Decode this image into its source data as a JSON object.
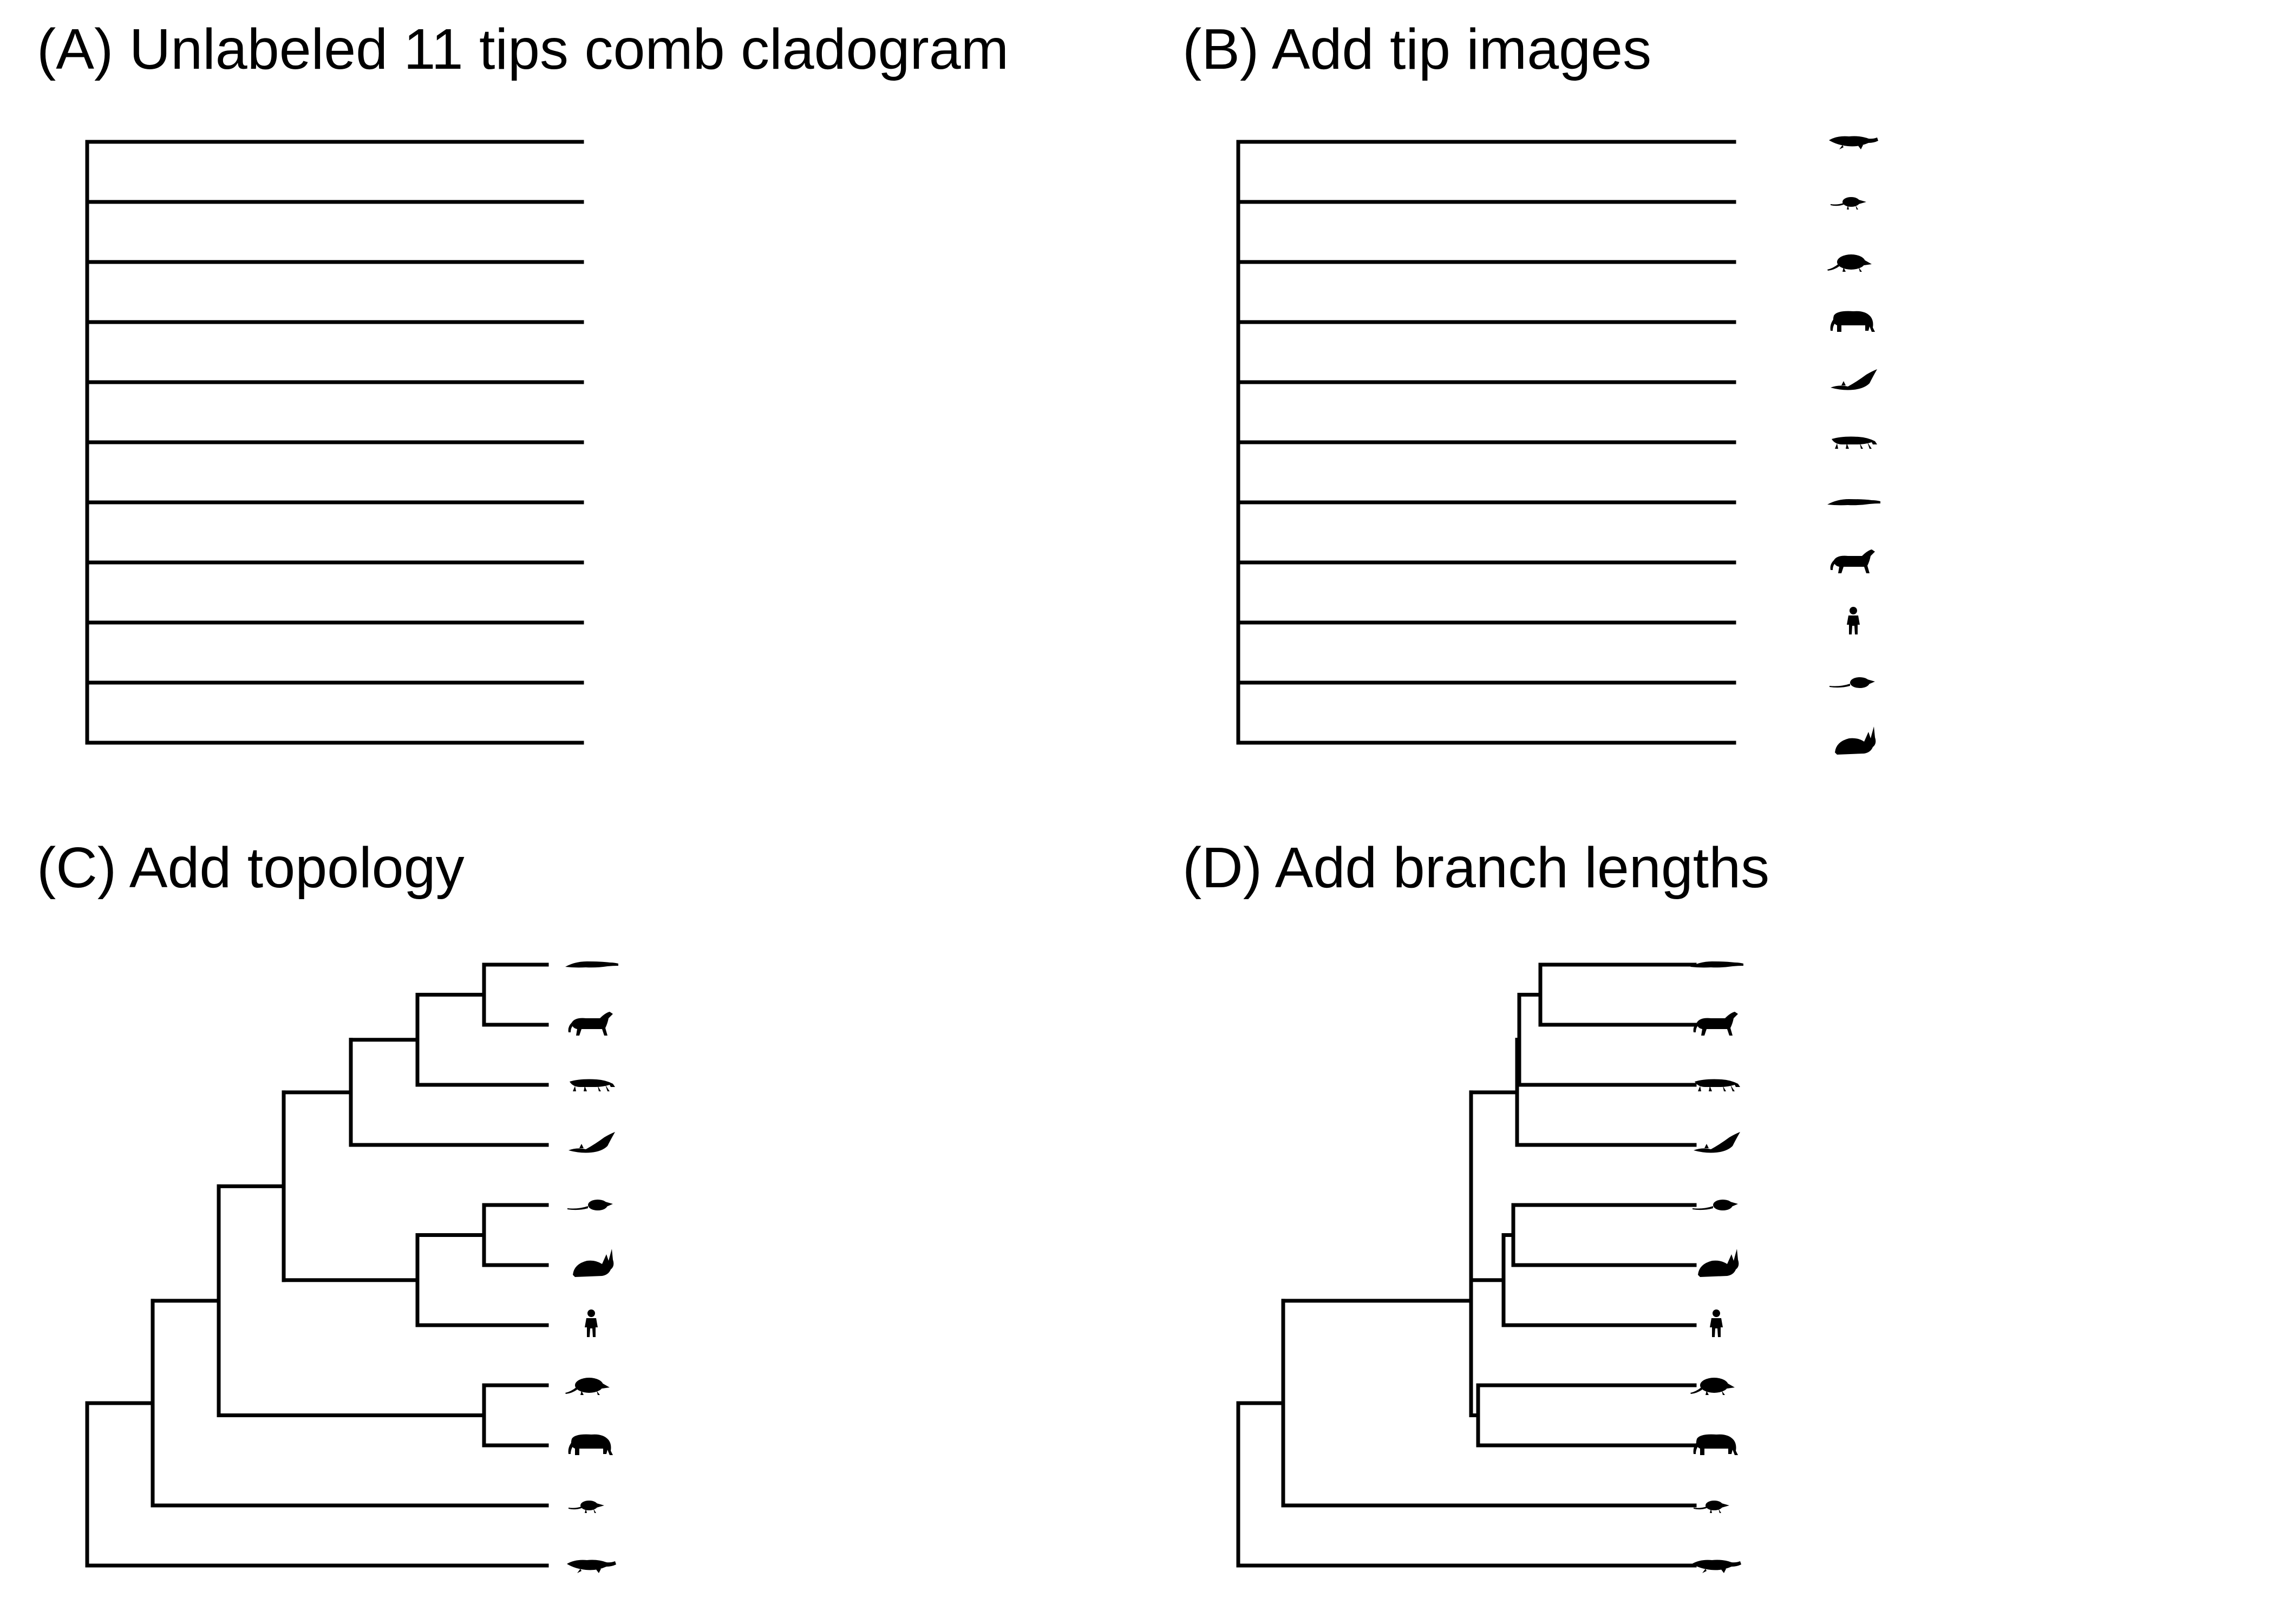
{
  "panels": {
    "a": {
      "title": "(A) Unlabeled 11 tips comb cladogram"
    },
    "b": {
      "title": "(B) Add tip images"
    },
    "c": {
      "title": "(C) Add topology"
    },
    "d": {
      "title": "(D) Add branch lengths"
    }
  },
  "colors": {
    "line": "#000000",
    "background": "#ffffff",
    "silhouette": "#000000"
  },
  "tip_count": 11,
  "tip_icons_comb": [
    "platypus-icon",
    "shrew-icon",
    "armadillo-icon",
    "elephant-icon",
    "bat-icon",
    "mongoose-icon",
    "crocodile-icon",
    "horse-icon",
    "human-icon",
    "rat-icon",
    "rabbit-icon"
  ],
  "tip_icons_tree": [
    "crocodile-icon",
    "horse-icon",
    "mongoose-icon",
    "bat-icon",
    "rat-icon",
    "rabbit-icon",
    "human-icon",
    "armadillo-icon",
    "elephant-icon",
    "shrew-icon",
    "platypus-icon"
  ],
  "topology_newick": "(platypus,(shrew,(((((crocodile,horse),mongoose),bat),((rat,rabbit),human)),(armadillo,elephant))));",
  "branch_length_note": ""
}
